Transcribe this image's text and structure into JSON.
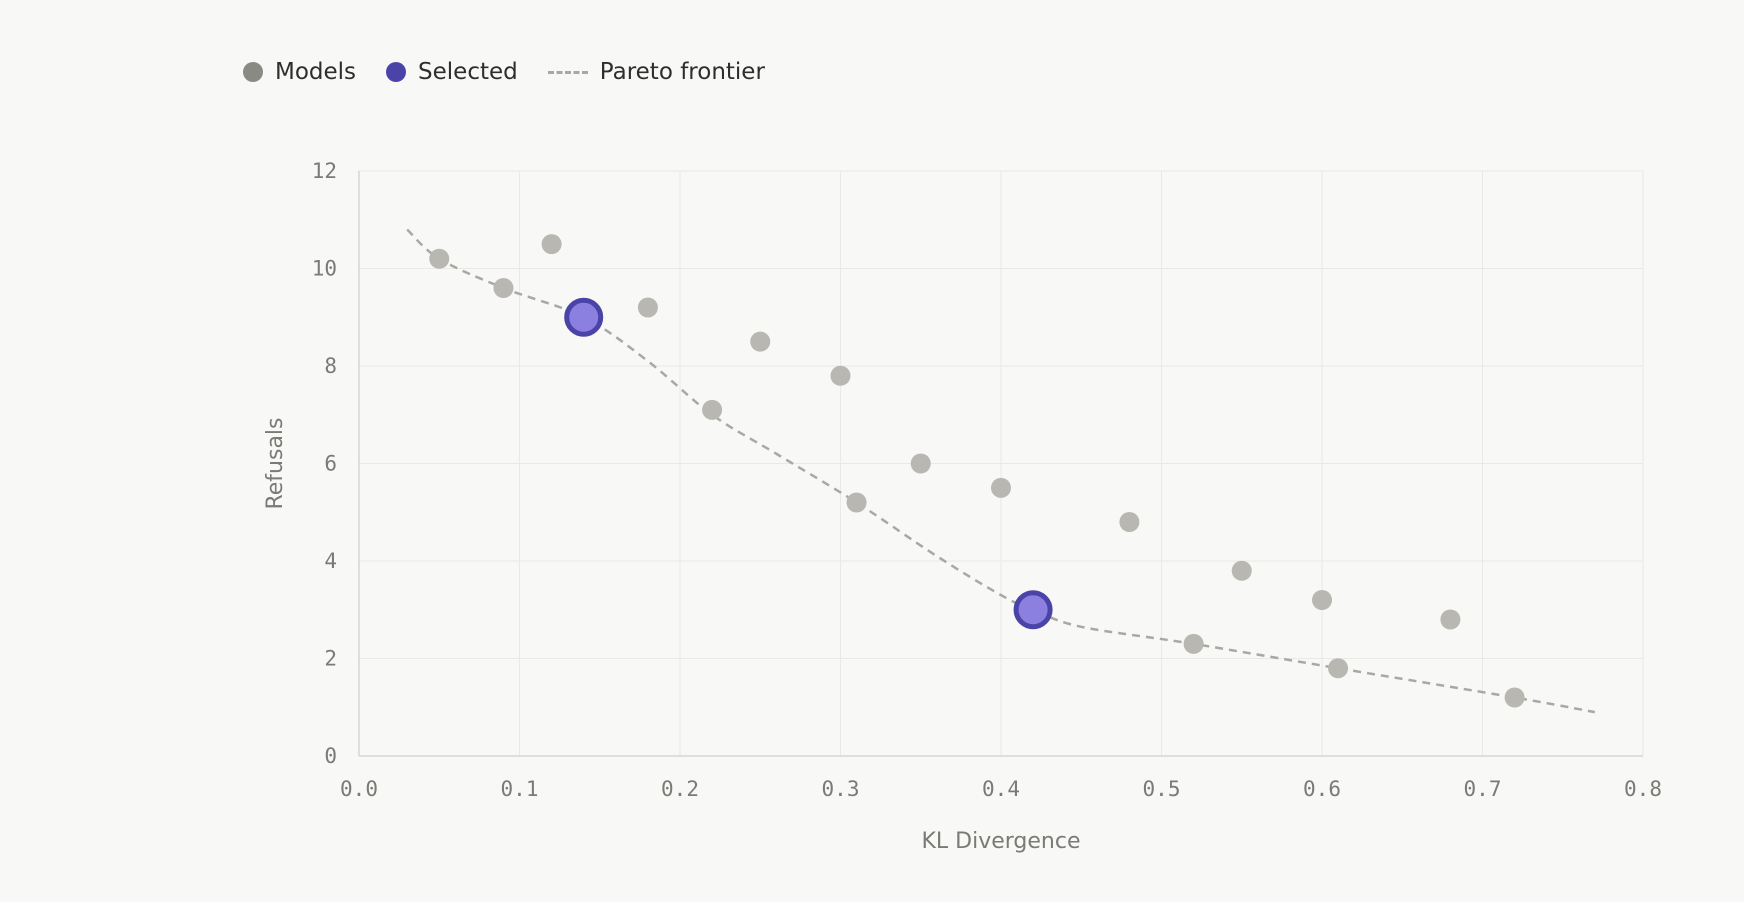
{
  "legend": {
    "models_label": "Models",
    "selected_label": "Selected",
    "frontier_label": "Pareto frontier"
  },
  "chart_data": {
    "type": "scatter",
    "title": "",
    "xlabel": "KL Divergence",
    "ylabel": "Refusals",
    "xlim": [
      0.0,
      0.8
    ],
    "ylim": [
      0,
      12
    ],
    "xticks": [
      "0.0",
      "0.1",
      "0.2",
      "0.3",
      "0.4",
      "0.5",
      "0.6",
      "0.7",
      "0.8"
    ],
    "yticks": [
      "0",
      "2",
      "4",
      "6",
      "8",
      "10",
      "12"
    ],
    "grid": true,
    "legend_position": "top-left",
    "series": [
      {
        "name": "Models",
        "color": "#b9b7b1",
        "points": [
          {
            "x": 0.05,
            "y": 10.2
          },
          {
            "x": 0.09,
            "y": 9.6
          },
          {
            "x": 0.12,
            "y": 10.5
          },
          {
            "x": 0.18,
            "y": 9.2
          },
          {
            "x": 0.22,
            "y": 7.1
          },
          {
            "x": 0.25,
            "y": 8.5
          },
          {
            "x": 0.3,
            "y": 7.8
          },
          {
            "x": 0.31,
            "y": 5.2
          },
          {
            "x": 0.35,
            "y": 6.0
          },
          {
            "x": 0.4,
            "y": 5.5
          },
          {
            "x": 0.48,
            "y": 4.8
          },
          {
            "x": 0.52,
            "y": 2.3
          },
          {
            "x": 0.55,
            "y": 3.8
          },
          {
            "x": 0.6,
            "y": 3.2
          },
          {
            "x": 0.61,
            "y": 1.8
          },
          {
            "x": 0.68,
            "y": 2.8
          },
          {
            "x": 0.72,
            "y": 1.2
          }
        ]
      },
      {
        "name": "Selected",
        "color": "#8b7fe0",
        "stroke": "#4a44a8",
        "points": [
          {
            "x": 0.14,
            "y": 9.0
          },
          {
            "x": 0.42,
            "y": 3.0
          }
        ]
      },
      {
        "name": "Pareto frontier",
        "color": "#a8a8a4",
        "line_style": "dashed",
        "points": [
          {
            "x": 0.03,
            "y": 10.8
          },
          {
            "x": 0.05,
            "y": 10.2
          },
          {
            "x": 0.09,
            "y": 9.6
          },
          {
            "x": 0.14,
            "y": 9.0
          },
          {
            "x": 0.18,
            "y": 8.1
          },
          {
            "x": 0.22,
            "y": 7.0
          },
          {
            "x": 0.26,
            "y": 6.2
          },
          {
            "x": 0.31,
            "y": 5.2
          },
          {
            "x": 0.36,
            "y": 4.1
          },
          {
            "x": 0.4,
            "y": 3.3
          },
          {
            "x": 0.42,
            "y": 3.0
          },
          {
            "x": 0.45,
            "y": 2.65
          },
          {
            "x": 0.52,
            "y": 2.3
          },
          {
            "x": 0.61,
            "y": 1.8
          },
          {
            "x": 0.72,
            "y": 1.2
          },
          {
            "x": 0.77,
            "y": 0.9
          }
        ]
      }
    ]
  }
}
